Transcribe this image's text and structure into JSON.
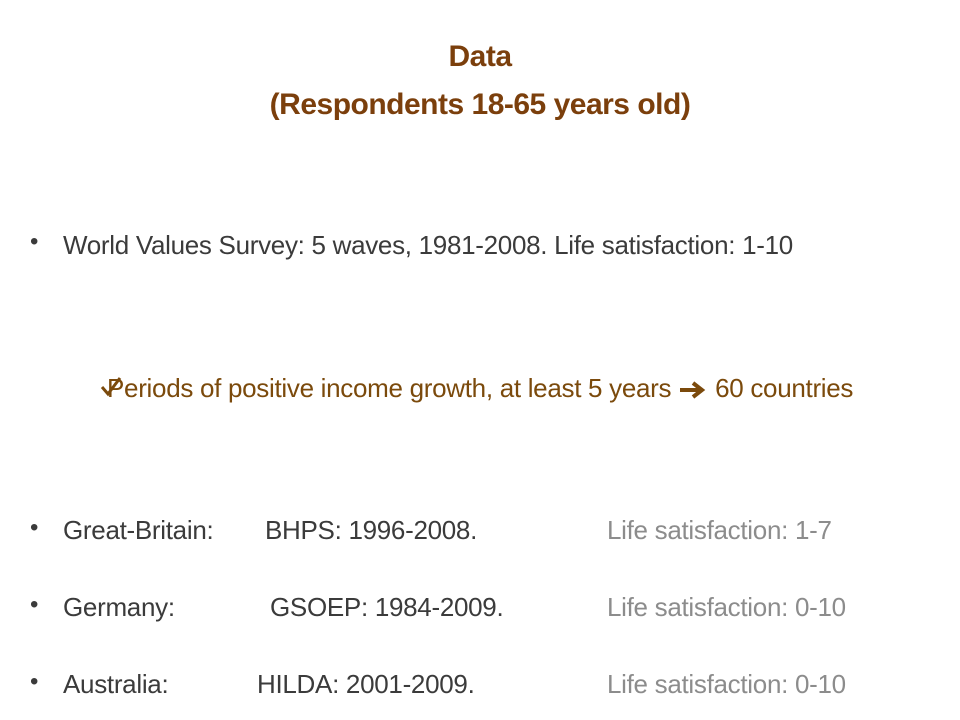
{
  "title": {
    "line1": "Data",
    "line2": "(Respondents 18-65 years old)"
  },
  "bullets": [
    {
      "text": "World Values Survey: 5 waves, 1981-2008. Life satisfaction: 1-10",
      "sub": {
        "before_arrow": "Periods of positive income growth, at least 5 years",
        "after_arrow": "60 countries"
      }
    },
    {
      "label": "Great-Britain:",
      "source": "BHPS: 1996-2008.",
      "scale": "Life satisfaction: 1-7"
    },
    {
      "label": "Germany:",
      "source": "GSOEP: 1984-2009.",
      "scale": "Life satisfaction: 0-10"
    },
    {
      "label": "Australia:",
      "source": "HILDA: 2001-2009.",
      "scale": "Life satisfaction: 0-10"
    }
  ]
}
